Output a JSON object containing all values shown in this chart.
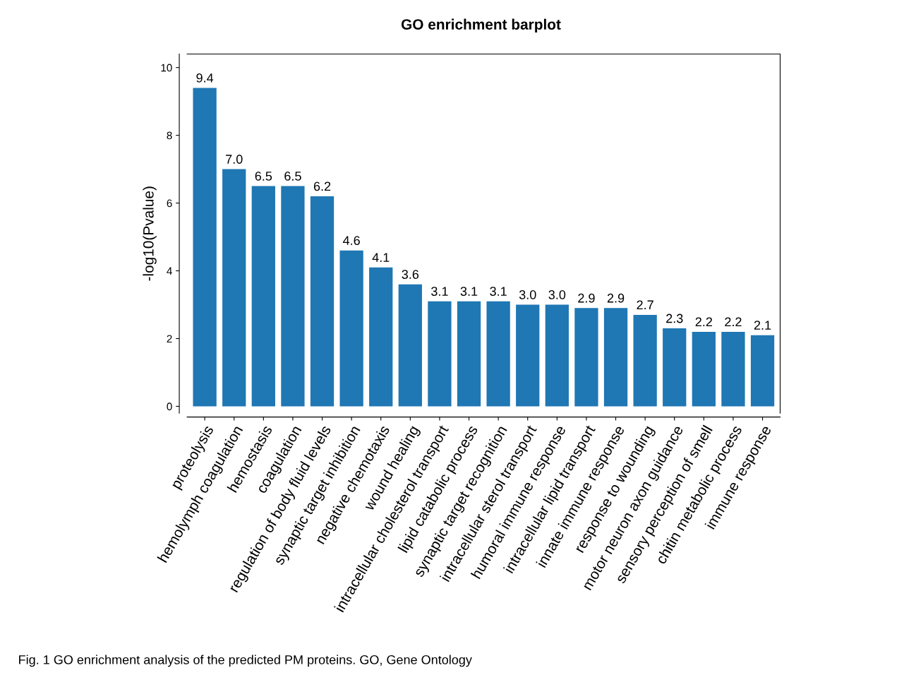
{
  "chart_data": {
    "type": "bar",
    "title": "GO enrichment barplot",
    "ylabel": "-log10(Pvalue)",
    "categories": [
      "proteolysis",
      "hemolymph coagulation",
      "hemostasis",
      "coagulation",
      "regulation of body fluid levels",
      "synaptic target inhibition",
      "negative chemotaxis",
      "wound healing",
      "intracellular cholesterol transport",
      "lipid catabolic process",
      "synaptic target recognition",
      "intracellular sterol transport",
      "humoral immune response",
      "intracellular lipid transport",
      "innate immune response",
      "response to wounding",
      "motor neuron axon guidance",
      "sensory perception of smell",
      "chitin metabolic process",
      "immune response"
    ],
    "values": [
      9.4,
      7.0,
      6.5,
      6.5,
      6.2,
      4.6,
      4.1,
      3.6,
      3.1,
      3.1,
      3.1,
      3.0,
      3.0,
      2.9,
      2.9,
      2.7,
      2.3,
      2.2,
      2.2,
      2.1
    ],
    "value_labels": [
      "9.4",
      "7.0",
      "6.5",
      "6.5",
      "6.2",
      "4.6",
      "4.1",
      "3.6",
      "3.1",
      "3.1",
      "3.1",
      "3.0",
      "3.0",
      "2.9",
      "2.9",
      "2.7",
      "2.3",
      "2.2",
      "2.2",
      "2.1"
    ],
    "color": "#1f77b4",
    "ylim": [
      -0.2,
      10.4
    ],
    "yticks": [
      0,
      2,
      4,
      6,
      8,
      10
    ],
    "grid": false,
    "legend": false,
    "annotations": [
      "Fig. 1 GO enrichment analysis of the predicted PM proteins. GO, Gene Ontology"
    ]
  }
}
